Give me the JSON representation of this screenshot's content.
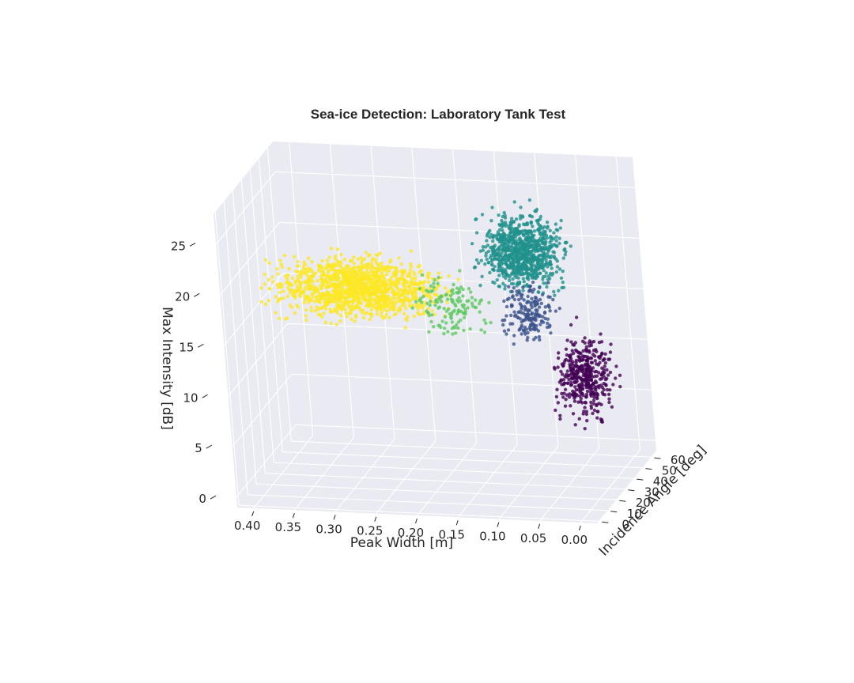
{
  "chart_data": {
    "type": "scatter",
    "projection": "3d",
    "title": "Sea-ice Detection: Laboratory Tank Test",
    "xlabel": "Peak Width [m]",
    "ylabel": "Incidence Angle [deg]",
    "zlabel": "Max Intensity [dB]",
    "xlim": [
      0.42,
      -0.02
    ],
    "ylim": [
      -2,
      66
    ],
    "zlim": [
      -1,
      28
    ],
    "x_ticks": [
      "0.40",
      "0.35",
      "0.30",
      "0.25",
      "0.20",
      "0.15",
      "0.10",
      "0.05",
      "0.00"
    ],
    "y_ticks": [
      "0",
      "10",
      "20",
      "30",
      "40",
      "50",
      "60"
    ],
    "z_ticks": [
      "0",
      "5",
      "10",
      "15",
      "20",
      "25"
    ],
    "grid": true,
    "legend": "none",
    "colormap": "viridis",
    "clusters": [
      {
        "color": "#fde725",
        "x_range": [
          0.13,
          0.4
        ],
        "y_range": [
          0,
          20
        ],
        "z_range": [
          16,
          24
        ],
        "approx_points": 3000
      },
      {
        "color": "#21918c",
        "x_range": [
          0.02,
          0.15
        ],
        "y_range": [
          20,
          45
        ],
        "z_range": [
          17,
          27
        ],
        "approx_points": 2000
      },
      {
        "color": "#5ec962",
        "x_range": [
          0.1,
          0.22
        ],
        "y_range": [
          5,
          25
        ],
        "z_range": [
          14,
          22
        ],
        "approx_points": 300
      },
      {
        "color": "#3b528b",
        "x_range": [
          0.04,
          0.12
        ],
        "y_range": [
          20,
          40
        ],
        "z_range": [
          12,
          20
        ],
        "approx_points": 400
      },
      {
        "color": "#440154",
        "x_range": [
          -0.01,
          0.08
        ],
        "y_range": [
          30,
          60
        ],
        "z_range": [
          3,
          14
        ],
        "approx_points": 900
      }
    ],
    "colors": {
      "pane": "#eaeaf2",
      "grid": "#ffffff",
      "text": "#262626"
    }
  }
}
